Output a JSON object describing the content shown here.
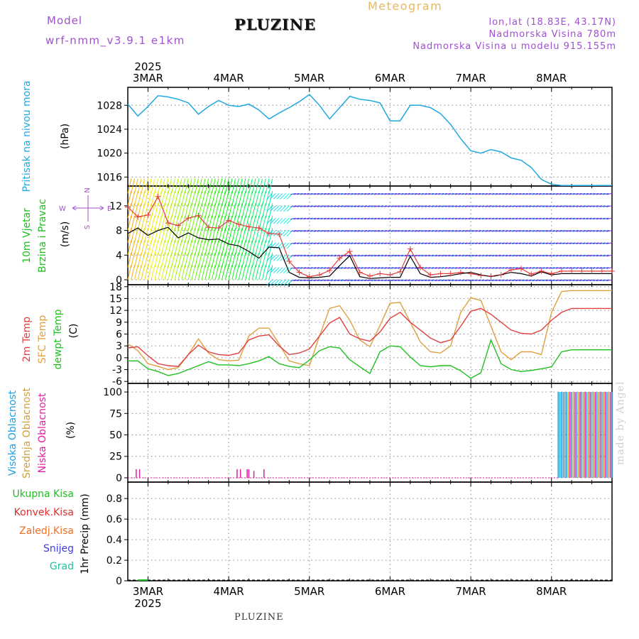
{
  "header": {
    "model_label": "Model",
    "model_name": "wrf-nmm_v3.9.1 e1km",
    "meteogram": "Meteogram",
    "location": "PLUZINE",
    "lonlat": "lon,lat (18.83E, 43.17N)",
    "elevation": "Nadmorska Visina 780m",
    "model_elevation": "Nadmorska Visina u modelu 915.155m"
  },
  "footer": {
    "location": "PLUZINE",
    "credit": "made by Angel"
  },
  "time_axis": {
    "year": "2025",
    "days": [
      "3MAR",
      "4MAR",
      "5MAR",
      "6MAR",
      "7MAR",
      "8MAR"
    ],
    "hours_start": 0,
    "hours_end": 144
  },
  "colors": {
    "pressure": "#20a8e0",
    "wind_speed": "#000000",
    "wind_gust": "#e04040",
    "t2m": "#e04040",
    "sfc": "#e0a040",
    "dewpt": "#20c020",
    "cloud_high": "#20a0e0",
    "cloud_mid": "#d0a040",
    "cloud_low": "#e020a0",
    "precip_total": "#20c020",
    "precip_conv": "#e03030",
    "precip_frozen": "#f07020",
    "snow": "#4040e0",
    "grad": "#20c0a0"
  },
  "chart_data": [
    {
      "type": "line",
      "id": "pressure",
      "ylabels": [
        "Pritisak na nivou mora",
        "(hPa)"
      ],
      "yticks": [
        1016,
        1020,
        1024,
        1028
      ],
      "ylim": [
        1014.5,
        1031
      ],
      "x": [
        0,
        3,
        6,
        9,
        12,
        15,
        18,
        21,
        24,
        27,
        30,
        33,
        36,
        39,
        42,
        45,
        48,
        51,
        54,
        57,
        60,
        63,
        66,
        69,
        72,
        75,
        78,
        81,
        84,
        87,
        90,
        93,
        96,
        99,
        102,
        105,
        108,
        111,
        114,
        117,
        120,
        123,
        126,
        129,
        132,
        135,
        138,
        141,
        144
      ],
      "series": [
        {
          "name": "pressure",
          "values": [
            1028.2,
            1026.2,
            1027.8,
            1029.6,
            1029.4,
            1029.0,
            1028.4,
            1026.5,
            1027.8,
            1028.8,
            1028.0,
            1027.8,
            1028.2,
            1027.2,
            1025.7,
            1026.7,
            1027.6,
            1028.6,
            1029.8,
            1028.0,
            1025.7,
            1027.6,
            1029.5,
            1029.0,
            1028.8,
            1028.4,
            1025.4,
            1025.4,
            1028.0,
            1028.0,
            1027.6,
            1026.6,
            1024.8,
            1022.4,
            1020.4,
            1020.0,
            1020.6,
            1020.2,
            1019.2,
            1018.8,
            1017.6,
            1015.6,
            1014.8,
            1014.6,
            1014.6,
            1014.6,
            1014.6,
            1014.6,
            1014.6
          ]
        }
      ]
    },
    {
      "type": "line",
      "id": "wind",
      "ylabels": [
        "10m Vjetar",
        "Brzina i Pravac",
        "(m/s)"
      ],
      "compass": {
        "n": "N",
        "s": "S",
        "e": "E",
        "w": "W"
      },
      "yticks": [
        0,
        4,
        8,
        12
      ],
      "ylim": [
        -0.8,
        15.2
      ],
      "x": [
        0,
        3,
        6,
        9,
        12,
        15,
        18,
        21,
        24,
        27,
        30,
        33,
        36,
        39,
        42,
        45,
        48,
        51,
        54,
        57,
        60,
        63,
        66,
        69,
        72,
        75,
        78,
        81,
        84,
        87,
        90,
        93,
        96,
        99,
        102,
        105,
        108,
        111,
        114,
        117,
        120,
        123,
        126,
        129,
        132,
        135,
        138,
        141,
        144
      ],
      "series": [
        {
          "name": "speed",
          "values": [
            7.5,
            8.4,
            7.2,
            8.0,
            8.5,
            6.8,
            7.6,
            6.8,
            6.5,
            6.6,
            5.8,
            5.5,
            4.6,
            3.5,
            5.3,
            5.2,
            1.2,
            0.4,
            0.3,
            0.4,
            0.6,
            2.3,
            3.9,
            0.5,
            0.2,
            0.3,
            0.4,
            0.4,
            3.8,
            1.0,
            0.4,
            0.5,
            0.7,
            1.0,
            1.2,
            0.8,
            0.5,
            0.8,
            1.2,
            1.0,
            0.6,
            1.3,
            0.8,
            1.0,
            1.0,
            1.0,
            1.0,
            1.0,
            1.0
          ]
        },
        {
          "name": "gust",
          "values": [
            11.8,
            10.2,
            10.5,
            13.5,
            9.2,
            8.8,
            10.0,
            10.4,
            8.5,
            8.4,
            9.6,
            9.0,
            8.6,
            8.4,
            7.5,
            7.4,
            3.0,
            1.2,
            0.5,
            0.8,
            1.5,
            3.5,
            4.6,
            1.2,
            0.6,
            1.0,
            0.8,
            1.3,
            5.0,
            2.0,
            0.8,
            1.0,
            1.0,
            1.2,
            1.0,
            0.7,
            0.6,
            0.8,
            1.6,
            1.8,
            0.9,
            1.4,
            1.0,
            1.4,
            1.4,
            1.4,
            1.4,
            1.4,
            1.4
          ]
        }
      ]
    },
    {
      "type": "line",
      "id": "temperature",
      "ylabels": [
        "2m Temp",
        "SFC Temp",
        "dewpt Temp",
        "(C)"
      ],
      "yticks": [
        -6,
        -3,
        0,
        3,
        6,
        9,
        12,
        15,
        18
      ],
      "ylim": [
        -6.5,
        18.5
      ],
      "x": [
        0,
        3,
        6,
        9,
        12,
        15,
        18,
        21,
        24,
        27,
        30,
        33,
        36,
        39,
        42,
        45,
        48,
        51,
        54,
        57,
        60,
        63,
        66,
        69,
        72,
        75,
        78,
        81,
        84,
        87,
        90,
        93,
        96,
        99,
        102,
        105,
        108,
        111,
        114,
        117,
        120,
        123,
        126,
        129,
        132,
        135,
        138,
        141,
        144
      ],
      "series": [
        {
          "name": "2m",
          "values": [
            2.5,
            2.8,
            0.5,
            -1.5,
            -2.0,
            -2.2,
            0.8,
            3.2,
            1.5,
            0.8,
            0.6,
            1.2,
            4.5,
            5.5,
            5.8,
            3.0,
            0.8,
            1.2,
            2.2,
            5.5,
            8.8,
            10.2,
            6.0,
            4.8,
            4.2,
            6.5,
            10.0,
            11.5,
            9.0,
            7.0,
            5.0,
            3.8,
            4.5,
            8.0,
            11.8,
            12.5,
            11.0,
            9.0,
            7.0,
            6.2,
            6.0,
            7.0,
            9.5,
            11.5,
            12.5,
            12.5,
            12.5,
            12.5,
            12.5
          ]
        },
        {
          "name": "sfc",
          "values": [
            3.5,
            1.8,
            -1.5,
            -2.2,
            -3.0,
            -2.5,
            0.8,
            4.8,
            1.2,
            -0.5,
            -0.8,
            -0.6,
            5.5,
            7.5,
            7.5,
            3.5,
            -0.8,
            -1.5,
            -2.0,
            5.5,
            12.5,
            13.2,
            9.5,
            4.5,
            2.8,
            8.2,
            13.8,
            14.0,
            9.0,
            4.0,
            1.5,
            1.2,
            3.0,
            11.5,
            15.2,
            14.5,
            8.0,
            1.5,
            -0.5,
            1.5,
            1.5,
            0.8,
            11.5,
            16.8,
            17.0,
            17.0,
            17.0,
            17.0,
            17.0
          ]
        },
        {
          "name": "dewpt",
          "values": [
            -0.8,
            -0.8,
            -2.8,
            -3.5,
            -4.5,
            -4.0,
            -3.0,
            -2.0,
            -1.0,
            -1.8,
            -1.8,
            -2.0,
            -1.5,
            -0.8,
            0.3,
            -1.5,
            -2.2,
            -2.5,
            -0.6,
            1.8,
            2.8,
            2.5,
            -0.5,
            -2.3,
            -4.0,
            1.5,
            3.0,
            2.8,
            0.2,
            -2.0,
            -2.3,
            -2.0,
            -2.0,
            -3.3,
            -5.2,
            -3.8,
            4.5,
            -1.5,
            -3.0,
            -3.5,
            -3.2,
            -2.8,
            -2.3,
            1.5,
            2.0,
            2.0,
            2.0,
            2.0,
            2.0
          ]
        }
      ]
    },
    {
      "type": "bar",
      "id": "clouds",
      "ylabels": [
        "Visoka Oblacnost",
        "Srednja Oblacnost",
        "Niska Oblacnost",
        "(%)"
      ],
      "yticks": [
        0,
        25,
        50,
        75,
        100
      ],
      "ylim": [
        -5,
        110
      ],
      "low_bars": [
        {
          "h": 2.5,
          "v": 10
        },
        {
          "h": 3.5,
          "v": 10
        },
        {
          "h": 32.5,
          "v": 10
        },
        {
          "h": 33.5,
          "v": 10
        },
        {
          "h": 35.5,
          "v": 10
        },
        {
          "h": 36.0,
          "v": 10
        },
        {
          "h": 37.5,
          "v": 8
        },
        {
          "h": 40.5,
          "v": 10
        }
      ],
      "full_cover_from": 128,
      "full_cover_to": 144,
      "full_cover_value": 100
    },
    {
      "type": "line",
      "id": "precip",
      "ylabels": [
        "Ukupna Kisa",
        "Konvek.Kisa",
        "Zaledj.Kisa",
        "Snijeg",
        "Grad",
        "1hr Precip (mm)"
      ],
      "yticks": [
        0,
        0.2,
        0.4,
        0.6,
        0.8
      ],
      "ylim": [
        0,
        0.96
      ],
      "x": [
        0,
        144
      ],
      "series": [
        {
          "name": "total",
          "values": [
            0,
            0
          ]
        }
      ]
    }
  ]
}
